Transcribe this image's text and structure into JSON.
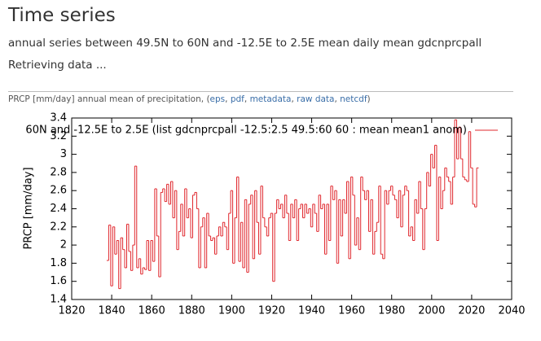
{
  "header": {
    "title": "Time series",
    "subtitle": "annual series between 49.5N to 60N and -12.5E to 2.5E mean daily mean gdcnprcpall",
    "status": "Retrieving data ..."
  },
  "caption": {
    "text": "PRCP [mm/day] annual mean of precipitation, ",
    "open": "(",
    "links": [
      "eps",
      "pdf",
      "metadata",
      "raw data",
      "netcdf"
    ],
    "sep": ", ",
    "close": ")"
  },
  "chart_data": {
    "type": "step",
    "ylabel": "PRCP [mm/day]",
    "x": [
      1838,
      1839,
      1840,
      1841,
      1842,
      1843,
      1844,
      1845,
      1846,
      1847,
      1848,
      1849,
      1850,
      1851,
      1852,
      1853,
      1854,
      1855,
      1856,
      1857,
      1858,
      1859,
      1860,
      1861,
      1862,
      1863,
      1864,
      1865,
      1866,
      1867,
      1868,
      1869,
      1870,
      1871,
      1872,
      1873,
      1874,
      1875,
      1876,
      1877,
      1878,
      1879,
      1880,
      1881,
      1882,
      1883,
      1884,
      1885,
      1886,
      1887,
      1888,
      1889,
      1890,
      1891,
      1892,
      1893,
      1894,
      1895,
      1896,
      1897,
      1898,
      1899,
      1900,
      1901,
      1902,
      1903,
      1904,
      1905,
      1906,
      1907,
      1908,
      1909,
      1910,
      1911,
      1912,
      1913,
      1914,
      1915,
      1916,
      1917,
      1918,
      1919,
      1920,
      1921,
      1922,
      1923,
      1924,
      1925,
      1926,
      1927,
      1928,
      1929,
      1930,
      1931,
      1932,
      1933,
      1934,
      1935,
      1936,
      1937,
      1938,
      1939,
      1940,
      1941,
      1942,
      1943,
      1944,
      1945,
      1946,
      1947,
      1948,
      1949,
      1950,
      1951,
      1952,
      1953,
      1954,
      1955,
      1956,
      1957,
      1958,
      1959,
      1960,
      1961,
      1962,
      1963,
      1964,
      1965,
      1966,
      1967,
      1968,
      1969,
      1970,
      1971,
      1972,
      1973,
      1974,
      1975,
      1976,
      1977,
      1978,
      1979,
      1980,
      1981,
      1982,
      1983,
      1984,
      1985,
      1986,
      1987,
      1988,
      1989,
      1990,
      1991,
      1992,
      1993,
      1994,
      1995,
      1996,
      1997,
      1998,
      1999,
      2000,
      2001,
      2002,
      2003,
      2004,
      2005,
      2006,
      2007,
      2008,
      2009,
      2010,
      2011,
      2012,
      2013,
      2014,
      2015,
      2016,
      2017,
      2018,
      2019,
      2020,
      2021,
      2022,
      2023
    ],
    "series": [
      {
        "name": "60N and -12.5E to 2.5E (list gdcnprcpall -12.5:2.5 49.5:60 60   :   mean mean1 anom)",
        "color": "#e0282e",
        "values": [
          1.83,
          2.22,
          1.55,
          2.2,
          1.9,
          2.05,
          1.52,
          2.08,
          1.95,
          1.75,
          2.23,
          1.93,
          1.72,
          2.0,
          2.87,
          1.75,
          1.85,
          1.68,
          1.75,
          1.73,
          2.05,
          1.72,
          2.05,
          1.82,
          2.62,
          2.1,
          1.65,
          2.58,
          2.62,
          2.48,
          2.67,
          2.45,
          2.7,
          2.3,
          2.6,
          1.95,
          2.15,
          2.45,
          2.1,
          2.62,
          2.3,
          2.4,
          2.08,
          2.55,
          2.58,
          2.4,
          1.75,
          2.2,
          2.3,
          1.75,
          2.35,
          2.1,
          2.05,
          2.08,
          1.9,
          2.1,
          2.2,
          2.1,
          2.25,
          2.2,
          1.95,
          2.35,
          2.6,
          1.8,
          2.3,
          2.75,
          1.82,
          2.25,
          1.75,
          2.5,
          1.7,
          2.45,
          2.55,
          1.85,
          2.6,
          2.25,
          1.9,
          2.65,
          2.3,
          2.2,
          2.1,
          2.3,
          2.35,
          1.6,
          2.35,
          2.5,
          2.4,
          2.45,
          2.3,
          2.55,
          2.35,
          2.05,
          2.45,
          2.3,
          2.5,
          2.05,
          2.4,
          2.45,
          2.3,
          2.45,
          2.35,
          2.4,
          2.2,
          2.45,
          2.35,
          2.15,
          2.55,
          2.4,
          2.45,
          1.9,
          2.45,
          2.05,
          2.65,
          2.5,
          2.6,
          1.8,
          2.5,
          2.1,
          2.5,
          2.35,
          2.7,
          1.85,
          2.75,
          2.55,
          2.0,
          2.3,
          1.95,
          2.75,
          2.6,
          2.5,
          2.6,
          2.15,
          2.5,
          1.9,
          2.15,
          2.25,
          2.65,
          1.9,
          1.85,
          2.6,
          2.45,
          2.6,
          2.65,
          2.55,
          2.5,
          2.3,
          2.6,
          2.2,
          2.55,
          2.65,
          2.6,
          2.1,
          2.2,
          2.05,
          2.5,
          2.35,
          2.7,
          2.4,
          1.95,
          2.4,
          2.8,
          2.65,
          3.0,
          2.85,
          3.1,
          2.05,
          2.75,
          2.4,
          2.6,
          2.85,
          2.75,
          2.7,
          2.45,
          2.75,
          3.38,
          2.95,
          3.3,
          2.95,
          2.75,
          2.72,
          2.7,
          3.25,
          2.85,
          2.45,
          2.42,
          2.85
        ]
      }
    ],
    "xlim": [
      1820,
      2040
    ],
    "xticks": [
      1820,
      1840,
      1860,
      1880,
      1900,
      1920,
      1940,
      1960,
      1980,
      2000,
      2020,
      2040
    ],
    "ylim": [
      1.4,
      3.4
    ],
    "yticks": [
      1.4,
      1.6,
      1.8,
      2,
      2.2,
      2.4,
      2.6,
      2.8,
      3,
      3.2,
      3.4
    ]
  }
}
